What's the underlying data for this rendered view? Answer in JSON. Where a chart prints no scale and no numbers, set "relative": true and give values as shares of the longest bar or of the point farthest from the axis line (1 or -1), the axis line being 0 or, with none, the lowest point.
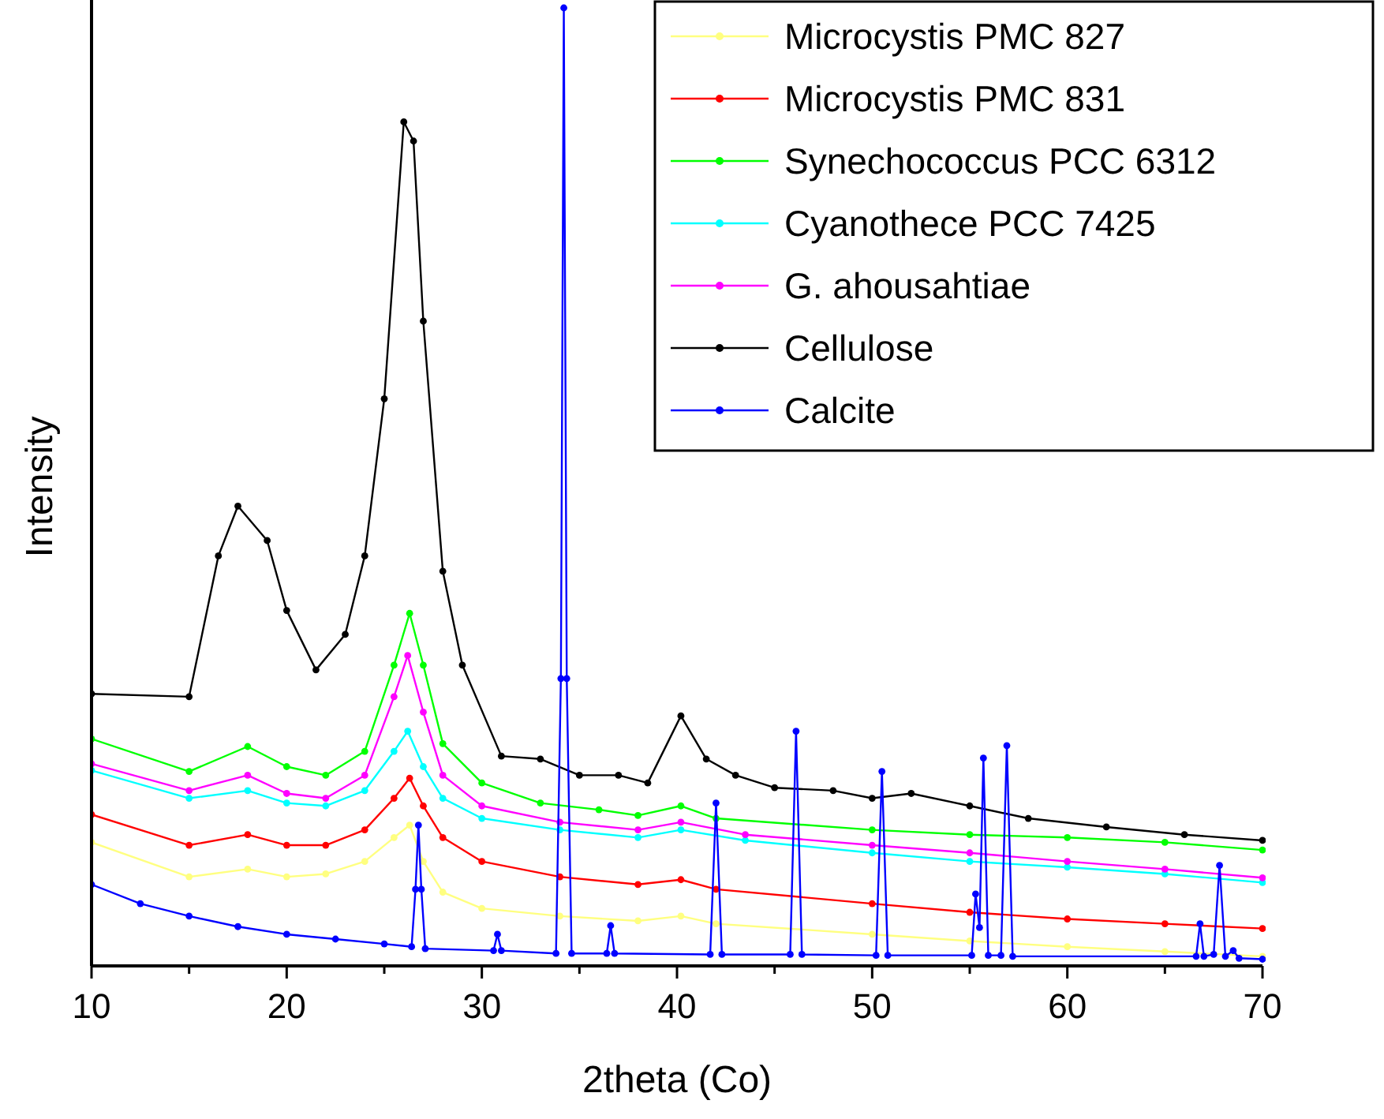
{
  "chart_data": {
    "type": "line",
    "relative": true,
    "xlabel": "2theta (Co)",
    "ylabel": "Intensity",
    "xlim": [
      10,
      70
    ],
    "xticks": [
      10,
      {
        "value": 15,
        "label": null
      },
      20,
      {
        "value": 25,
        "label": null
      },
      30,
      {
        "value": 35,
        "label": null
      },
      40,
      {
        "value": 45,
        "label": null
      },
      50,
      {
        "value": 55,
        "label": null
      },
      60,
      {
        "value": 65,
        "label": null
      },
      70
    ],
    "legend": "top right",
    "marker": "circle",
    "grid": false,
    "series": [
      {
        "name": "Microcystis PMC 827",
        "color": "#ffff80",
        "x": [
          10,
          15,
          18,
          20,
          22,
          24,
          25.5,
          26.3,
          27,
          28,
          30,
          34,
          38,
          40.2,
          42,
          50,
          55,
          60,
          65,
          70
        ],
        "values": [
          0.129,
          0.093,
          0.101,
          0.093,
          0.096,
          0.109,
          0.134,
          0.147,
          0.109,
          0.077,
          0.06,
          0.052,
          0.047,
          0.052,
          0.044,
          0.033,
          0.026,
          0.02,
          0.015,
          0.01
        ]
      },
      {
        "name": "Microcystis PMC 831",
        "color": "#ff0000",
        "x": [
          10,
          15,
          18,
          20,
          22,
          24,
          25.5,
          26.3,
          27,
          28,
          30,
          34,
          38,
          40.2,
          42,
          50,
          55,
          60,
          65,
          70
        ],
        "values": [
          0.158,
          0.126,
          0.137,
          0.126,
          0.126,
          0.142,
          0.175,
          0.196,
          0.167,
          0.134,
          0.109,
          0.093,
          0.085,
          0.09,
          0.08,
          0.065,
          0.056,
          0.049,
          0.044,
          0.039
        ]
      },
      {
        "name": "Synechococcus PCC 6312",
        "color": "#00ff00",
        "x": [
          10,
          15,
          18,
          20,
          22,
          24,
          25.5,
          26.3,
          27,
          28,
          30,
          33,
          36,
          38,
          40.2,
          42,
          50,
          55,
          60,
          65,
          70
        ],
        "values": [
          0.237,
          0.203,
          0.229,
          0.208,
          0.199,
          0.224,
          0.314,
          0.368,
          0.314,
          0.232,
          0.191,
          0.17,
          0.163,
          0.157,
          0.167,
          0.154,
          0.142,
          0.137,
          0.134,
          0.129,
          0.121
        ]
      },
      {
        "name": "Cyanothece PCC 7425",
        "color": "#00ffff",
        "x": [
          10,
          15,
          18,
          20,
          22,
          24,
          25.5,
          26.2,
          27,
          28,
          30,
          34,
          38,
          40.2,
          43.5,
          50,
          55,
          60,
          65,
          70
        ],
        "values": [
          0.204,
          0.175,
          0.183,
          0.17,
          0.167,
          0.183,
          0.224,
          0.245,
          0.208,
          0.175,
          0.154,
          0.142,
          0.134,
          0.142,
          0.131,
          0.118,
          0.109,
          0.103,
          0.096,
          0.087
        ]
      },
      {
        "name": "G. ahousahtiae",
        "color": "#ff00ff",
        "x": [
          10,
          15,
          18,
          20,
          22,
          24,
          25.5,
          26.2,
          27,
          28,
          30,
          34,
          38,
          40.2,
          43.5,
          50,
          55,
          60,
          65,
          70
        ],
        "values": [
          0.211,
          0.183,
          0.199,
          0.18,
          0.175,
          0.199,
          0.281,
          0.324,
          0.265,
          0.199,
          0.167,
          0.15,
          0.142,
          0.15,
          0.137,
          0.126,
          0.118,
          0.109,
          0.101,
          0.092
        ]
      },
      {
        "name": "Cellulose",
        "color": "#000000",
        "x": [
          10,
          15,
          16.5,
          17.5,
          19,
          20,
          21.5,
          23,
          24,
          25,
          26,
          26.5,
          27,
          28,
          29,
          31,
          33,
          35,
          37,
          38.5,
          40.2,
          41.5,
          43,
          45,
          48,
          50,
          52,
          55,
          58,
          62,
          66,
          70
        ],
        "values": [
          0.284,
          0.281,
          0.428,
          0.48,
          0.444,
          0.371,
          0.309,
          0.346,
          0.428,
          0.592,
          0.881,
          0.861,
          0.673,
          0.412,
          0.314,
          0.219,
          0.216,
          0.199,
          0.199,
          0.191,
          0.261,
          0.216,
          0.199,
          0.186,
          0.183,
          0.175,
          0.18,
          0.167,
          0.154,
          0.145,
          0.137,
          0.131
        ]
      },
      {
        "name": "Calcite",
        "color": "#0000ff",
        "x": [
          10,
          12.5,
          15,
          17.5,
          20,
          22.5,
          25,
          26.4,
          26.6,
          26.75,
          26.9,
          27.1,
          30.6,
          30.8,
          31,
          33.8,
          34.05,
          34.2,
          34.35,
          34.6,
          36.4,
          36.6,
          36.8,
          41.7,
          42,
          42.3,
          45.8,
          46.1,
          46.4,
          50.2,
          50.5,
          50.8,
          55.1,
          55.3,
          55.5,
          55.7,
          55.95,
          56.6,
          56.9,
          57.2,
          66.6,
          66.8,
          67,
          67.5,
          67.8,
          68.1,
          68.5,
          68.8,
          70
        ],
        "values": [
          0.085,
          0.065,
          0.052,
          0.041,
          0.033,
          0.028,
          0.023,
          0.02,
          0.08,
          0.147,
          0.08,
          0.018,
          0.016,
          0.033,
          0.016,
          0.013,
          0.3,
          1,
          0.3,
          0.013,
          0.013,
          0.042,
          0.013,
          0.012,
          0.17,
          0.012,
          0.012,
          0.245,
          0.012,
          0.011,
          0.203,
          0.011,
          0.011,
          0.075,
          0.04,
          0.217,
          0.011,
          0.011,
          0.23,
          0.01,
          0.01,
          0.044,
          0.01,
          0.012,
          0.105,
          0.01,
          0.016,
          0.008,
          0.007
        ]
      }
    ]
  }
}
